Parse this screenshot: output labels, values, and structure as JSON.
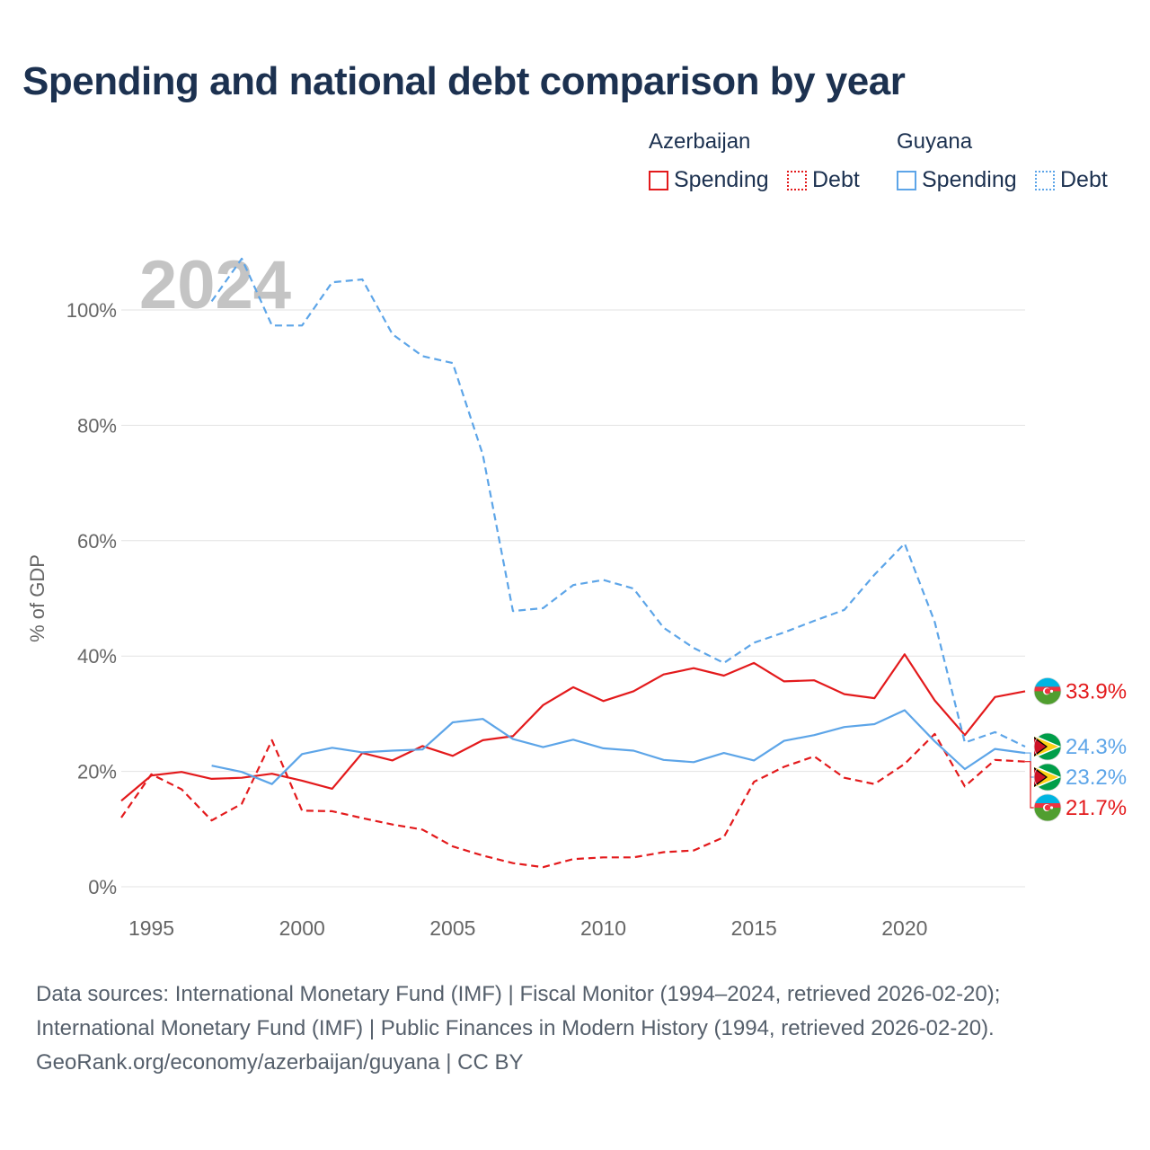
{
  "title": "Spending and national debt comparison by year",
  "legend": {
    "groups": [
      {
        "country": "Azerbaijan",
        "color": "#e31a1c",
        "items": [
          {
            "label": "Spending",
            "style": "solid"
          },
          {
            "label": "Debt",
            "style": "dashed"
          }
        ]
      },
      {
        "country": "Guyana",
        "color": "#5da5e8",
        "items": [
          {
            "label": "Spending",
            "style": "solid"
          },
          {
            "label": "Debt",
            "style": "dashed"
          }
        ]
      }
    ]
  },
  "year_label": "2024",
  "footer": {
    "line1": "Data sources: International Monetary Fund (IMF) | Fiscal Monitor (1994–2024, retrieved 2026-02-20);",
    "line2": "International Monetary Fund (IMF) | Public Finances in Modern History (1994, retrieved 2026-02-20).",
    "line3": "GeoRank.org/economy/azerbaijan/guyana | CC BY"
  },
  "chart_data": {
    "type": "line",
    "title": "Spending and national debt comparison by year",
    "xlabel": "",
    "ylabel": "% of GDP",
    "xlim": [
      1994,
      2024
    ],
    "ylim": [
      0,
      110
    ],
    "x_ticks": [
      1995,
      2000,
      2005,
      2010,
      2015,
      2020
    ],
    "y_ticks": [
      {
        "value": 0,
        "label": "0%"
      },
      {
        "value": 20,
        "label": "20%"
      },
      {
        "value": 40,
        "label": "40%"
      },
      {
        "value": 60,
        "label": "60%"
      },
      {
        "value": 80,
        "label": "80%"
      },
      {
        "value": 100,
        "label": "100%"
      }
    ],
    "grid": true,
    "series": [
      {
        "name": "Azerbaijan Spending",
        "country": "Azerbaijan",
        "metric": "Spending",
        "color": "#e31a1c",
        "dash": "solid",
        "label": "33.9%",
        "x": [
          1994,
          1995,
          1996,
          1997,
          1998,
          1999,
          2000,
          2001,
          2002,
          2003,
          2004,
          2005,
          2006,
          2007,
          2008,
          2009,
          2010,
          2011,
          2012,
          2013,
          2014,
          2015,
          2016,
          2017,
          2018,
          2019,
          2020,
          2021,
          2022,
          2023,
          2024
        ],
        "y": [
          14.9,
          19.3,
          19.9,
          18.7,
          18.9,
          19.6,
          18.4,
          17.0,
          23.2,
          21.9,
          24.4,
          22.7,
          25.4,
          26.1,
          31.5,
          34.6,
          32.2,
          33.9,
          36.8,
          37.9,
          36.6,
          38.8,
          35.6,
          35.8,
          33.4,
          32.7,
          40.3,
          32.3,
          26.3,
          32.9,
          33.9
        ]
      },
      {
        "name": "Azerbaijan Debt",
        "country": "Azerbaijan",
        "metric": "Debt",
        "color": "#e31a1c",
        "dash": "dashed",
        "label": "21.7%",
        "x": [
          1994,
          1995,
          1996,
          1997,
          1998,
          1999,
          2000,
          2001,
          2002,
          2003,
          2004,
          2005,
          2006,
          2007,
          2008,
          2009,
          2010,
          2011,
          2012,
          2013,
          2014,
          2015,
          2016,
          2017,
          2018,
          2019,
          2020,
          2021,
          2022,
          2023,
          2024
        ],
        "y": [
          12.0,
          19.5,
          16.9,
          11.5,
          14.4,
          25.4,
          13.2,
          13.1,
          11.9,
          10.8,
          9.9,
          7.0,
          5.4,
          4.1,
          3.4,
          4.8,
          5.1,
          5.1,
          6.0,
          6.3,
          8.6,
          18.2,
          20.8,
          22.6,
          18.9,
          17.8,
          21.3,
          26.5,
          17.4,
          22.0,
          21.7
        ]
      },
      {
        "name": "Guyana Spending",
        "country": "Guyana",
        "metric": "Spending",
        "color": "#5da5e8",
        "dash": "solid",
        "label": "23.2%",
        "x": [
          1997,
          1998,
          1999,
          2000,
          2001,
          2002,
          2003,
          2004,
          2005,
          2006,
          2007,
          2008,
          2009,
          2010,
          2011,
          2012,
          2013,
          2014,
          2015,
          2016,
          2017,
          2018,
          2019,
          2020,
          2021,
          2022,
          2023,
          2024
        ],
        "y": [
          21.0,
          19.9,
          17.8,
          23.0,
          24.1,
          23.3,
          23.6,
          23.8,
          28.5,
          29.1,
          25.6,
          24.2,
          25.5,
          24.0,
          23.6,
          22.0,
          21.6,
          23.2,
          21.9,
          25.3,
          26.3,
          27.7,
          28.2,
          30.6,
          25.2,
          20.4,
          23.9,
          23.2
        ]
      },
      {
        "name": "Guyana Debt",
        "country": "Guyana",
        "metric": "Debt",
        "color": "#5da5e8",
        "dash": "dashed",
        "label": "24.3%",
        "x": [
          1997,
          1998,
          1999,
          2000,
          2001,
          2002,
          2003,
          2004,
          2005,
          2006,
          2007,
          2008,
          2009,
          2010,
          2011,
          2012,
          2013,
          2014,
          2015,
          2016,
          2017,
          2018,
          2019,
          2020,
          2021,
          2022,
          2023,
          2024
        ],
        "y": [
          101.5,
          108.9,
          97.3,
          97.3,
          104.8,
          105.3,
          95.8,
          92.0,
          90.8,
          74.9,
          47.8,
          48.3,
          52.3,
          53.2,
          51.7,
          44.9,
          41.4,
          38.8,
          42.3,
          44.1,
          46.1,
          48.0,
          54.1,
          59.5,
          45.9,
          25.0,
          26.8,
          24.3
        ]
      }
    ],
    "end_labels": [
      {
        "series": "Azerbaijan Spending",
        "text": "33.9%",
        "flag": "azerbaijan-flag"
      },
      {
        "series": "Guyana Debt",
        "text": "24.3%",
        "flag": "guyana-flag"
      },
      {
        "series": "Guyana Spending",
        "text": "23.2%",
        "flag": "guyana-flag"
      },
      {
        "series": "Azerbaijan Debt",
        "text": "21.7%",
        "flag": "azerbaijan-flag"
      }
    ]
  }
}
